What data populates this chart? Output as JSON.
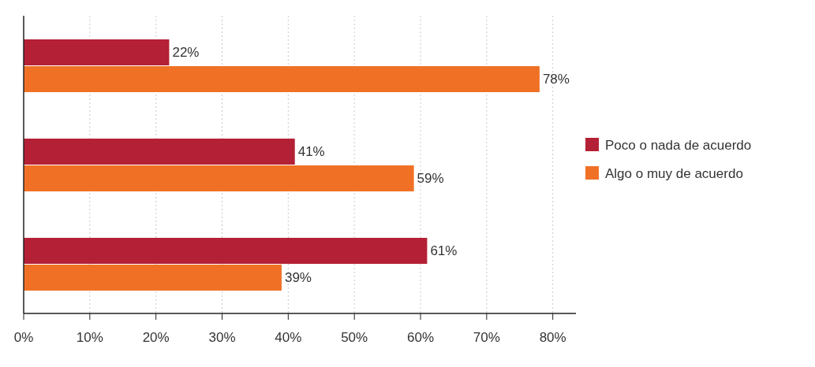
{
  "chart_data": {
    "type": "bar",
    "orientation": "horizontal",
    "categories": [
      null,
      null,
      null
    ],
    "series": [
      {
        "name": "Poco o nada de acuerdo",
        "color": "#b42035",
        "values": [
          22,
          41,
          61
        ],
        "value_labels": [
          "22%",
          "41%",
          "61%"
        ]
      },
      {
        "name": "Algo o muy de acuerdo",
        "color": "#f07126",
        "values": [
          78,
          59,
          39
        ],
        "value_labels": [
          "78%",
          "59%",
          "39%"
        ]
      }
    ],
    "xlim": [
      0,
      83.5
    ],
    "xticks": [
      {
        "value": 0,
        "label": "0%"
      },
      {
        "value": 10,
        "label": "10%"
      },
      {
        "value": 20,
        "label": "20%"
      },
      {
        "value": 30,
        "label": "30%"
      },
      {
        "value": 40,
        "label": "40%"
      },
      {
        "value": 50,
        "label": "50%"
      },
      {
        "value": 60,
        "label": "60%"
      },
      {
        "value": 70,
        "label": "70%"
      },
      {
        "value": 80,
        "label": "80%"
      }
    ],
    "grid": "x",
    "legend": "right"
  }
}
